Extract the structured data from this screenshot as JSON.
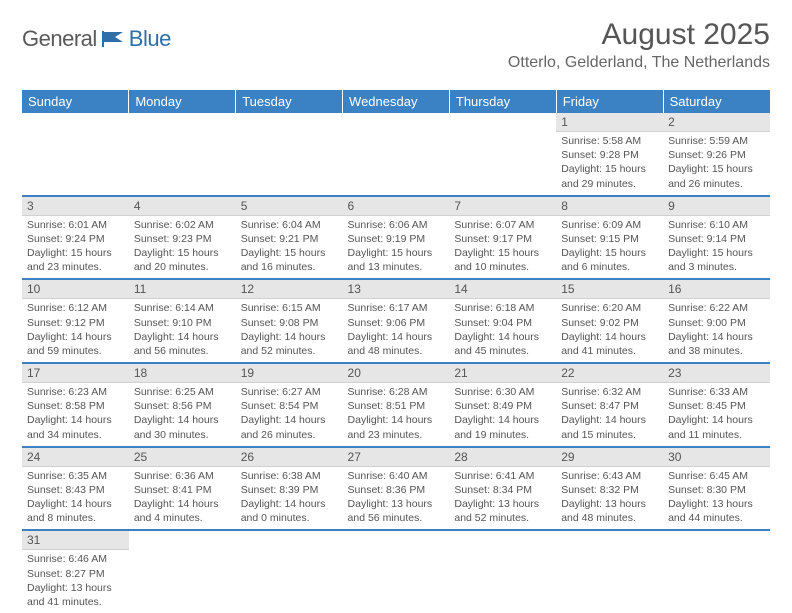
{
  "logo": {
    "general": "General",
    "blue": "Blue"
  },
  "title": "August 2025",
  "location": "Otterlo, Gelderland, The Netherlands",
  "colors": {
    "header_bg": "#3b82c4",
    "header_fg": "#ffffff",
    "daynum_bg": "#e6e6e6",
    "border": "#3b82c4",
    "text": "#555555"
  },
  "weekdays": [
    "Sunday",
    "Monday",
    "Tuesday",
    "Wednesday",
    "Thursday",
    "Friday",
    "Saturday"
  ],
  "weeks": [
    [
      null,
      null,
      null,
      null,
      null,
      {
        "n": "1",
        "sunrise": "5:58 AM",
        "sunset": "9:28 PM",
        "daylight": "15 hours and 29 minutes."
      },
      {
        "n": "2",
        "sunrise": "5:59 AM",
        "sunset": "9:26 PM",
        "daylight": "15 hours and 26 minutes."
      }
    ],
    [
      {
        "n": "3",
        "sunrise": "6:01 AM",
        "sunset": "9:24 PM",
        "daylight": "15 hours and 23 minutes."
      },
      {
        "n": "4",
        "sunrise": "6:02 AM",
        "sunset": "9:23 PM",
        "daylight": "15 hours and 20 minutes."
      },
      {
        "n": "5",
        "sunrise": "6:04 AM",
        "sunset": "9:21 PM",
        "daylight": "15 hours and 16 minutes."
      },
      {
        "n": "6",
        "sunrise": "6:06 AM",
        "sunset": "9:19 PM",
        "daylight": "15 hours and 13 minutes."
      },
      {
        "n": "7",
        "sunrise": "6:07 AM",
        "sunset": "9:17 PM",
        "daylight": "15 hours and 10 minutes."
      },
      {
        "n": "8",
        "sunrise": "6:09 AM",
        "sunset": "9:15 PM",
        "daylight": "15 hours and 6 minutes."
      },
      {
        "n": "9",
        "sunrise": "6:10 AM",
        "sunset": "9:14 PM",
        "daylight": "15 hours and 3 minutes."
      }
    ],
    [
      {
        "n": "10",
        "sunrise": "6:12 AM",
        "sunset": "9:12 PM",
        "daylight": "14 hours and 59 minutes."
      },
      {
        "n": "11",
        "sunrise": "6:14 AM",
        "sunset": "9:10 PM",
        "daylight": "14 hours and 56 minutes."
      },
      {
        "n": "12",
        "sunrise": "6:15 AM",
        "sunset": "9:08 PM",
        "daylight": "14 hours and 52 minutes."
      },
      {
        "n": "13",
        "sunrise": "6:17 AM",
        "sunset": "9:06 PM",
        "daylight": "14 hours and 48 minutes."
      },
      {
        "n": "14",
        "sunrise": "6:18 AM",
        "sunset": "9:04 PM",
        "daylight": "14 hours and 45 minutes."
      },
      {
        "n": "15",
        "sunrise": "6:20 AM",
        "sunset": "9:02 PM",
        "daylight": "14 hours and 41 minutes."
      },
      {
        "n": "16",
        "sunrise": "6:22 AM",
        "sunset": "9:00 PM",
        "daylight": "14 hours and 38 minutes."
      }
    ],
    [
      {
        "n": "17",
        "sunrise": "6:23 AM",
        "sunset": "8:58 PM",
        "daylight": "14 hours and 34 minutes."
      },
      {
        "n": "18",
        "sunrise": "6:25 AM",
        "sunset": "8:56 PM",
        "daylight": "14 hours and 30 minutes."
      },
      {
        "n": "19",
        "sunrise": "6:27 AM",
        "sunset": "8:54 PM",
        "daylight": "14 hours and 26 minutes."
      },
      {
        "n": "20",
        "sunrise": "6:28 AM",
        "sunset": "8:51 PM",
        "daylight": "14 hours and 23 minutes."
      },
      {
        "n": "21",
        "sunrise": "6:30 AM",
        "sunset": "8:49 PM",
        "daylight": "14 hours and 19 minutes."
      },
      {
        "n": "22",
        "sunrise": "6:32 AM",
        "sunset": "8:47 PM",
        "daylight": "14 hours and 15 minutes."
      },
      {
        "n": "23",
        "sunrise": "6:33 AM",
        "sunset": "8:45 PM",
        "daylight": "14 hours and 11 minutes."
      }
    ],
    [
      {
        "n": "24",
        "sunrise": "6:35 AM",
        "sunset": "8:43 PM",
        "daylight": "14 hours and 8 minutes."
      },
      {
        "n": "25",
        "sunrise": "6:36 AM",
        "sunset": "8:41 PM",
        "daylight": "14 hours and 4 minutes."
      },
      {
        "n": "26",
        "sunrise": "6:38 AM",
        "sunset": "8:39 PM",
        "daylight": "14 hours and 0 minutes."
      },
      {
        "n": "27",
        "sunrise": "6:40 AM",
        "sunset": "8:36 PM",
        "daylight": "13 hours and 56 minutes."
      },
      {
        "n": "28",
        "sunrise": "6:41 AM",
        "sunset": "8:34 PM",
        "daylight": "13 hours and 52 minutes."
      },
      {
        "n": "29",
        "sunrise": "6:43 AM",
        "sunset": "8:32 PM",
        "daylight": "13 hours and 48 minutes."
      },
      {
        "n": "30",
        "sunrise": "6:45 AM",
        "sunset": "8:30 PM",
        "daylight": "13 hours and 44 minutes."
      }
    ],
    [
      {
        "n": "31",
        "sunrise": "6:46 AM",
        "sunset": "8:27 PM",
        "daylight": "13 hours and 41 minutes."
      },
      null,
      null,
      null,
      null,
      null,
      null
    ]
  ],
  "labels": {
    "sunrise": "Sunrise: ",
    "sunset": "Sunset: ",
    "daylight": "Daylight: "
  }
}
